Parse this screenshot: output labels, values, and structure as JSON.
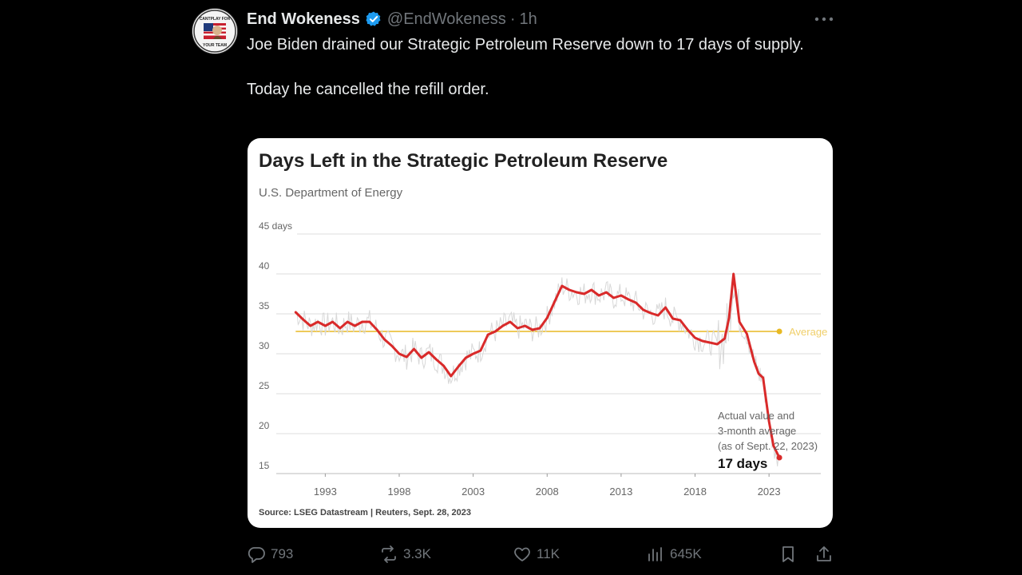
{
  "tweet": {
    "display_name": "End Wokeness",
    "handle": "@EndWokeness",
    "separator": "·",
    "time": "1h",
    "line1": "Joe Biden drained our Strategic Petroleum Reserve down to 17 days of supply.",
    "line2": "Today he cancelled the refill order.",
    "avatar_label_top": "CANTPLAY FOR",
    "avatar_label_bottom": "YOUR TEAM"
  },
  "actions": {
    "replies": "793",
    "reposts": "3.3K",
    "likes": "11K",
    "views": "645K"
  },
  "colors": {
    "accent_blue": "#1d9bf0",
    "line_red": "#d92a2a",
    "average_gold": "#e8b923",
    "muted": "#71767b"
  },
  "icons": [
    "verified-badge-icon",
    "more-icon",
    "reply-icon",
    "repost-icon",
    "like-icon",
    "views-icon",
    "bookmark-icon",
    "share-icon"
  ],
  "chart_data": {
    "type": "line",
    "title": "Days Left in the Strategic Petroleum Reserve",
    "subtitle": "U.S. Department of Energy",
    "source": "Source: LSEG Datastream | Reuters, Sept. 28, 2023",
    "ylim": [
      15,
      45
    ],
    "xlim": [
      1988.5,
      2026.5
    ],
    "y_ticks": [
      {
        "value": 45,
        "label": "45 days"
      },
      {
        "value": 40,
        "label": "40"
      },
      {
        "value": 35,
        "label": "35"
      },
      {
        "value": 30,
        "label": "30"
      },
      {
        "value": 25,
        "label": "25"
      },
      {
        "value": 20,
        "label": "20"
      },
      {
        "value": 15,
        "label": "15"
      }
    ],
    "x_ticks": [
      {
        "value": 1993,
        "label": "1993"
      },
      {
        "value": 1998,
        "label": "1998"
      },
      {
        "value": 2003,
        "label": "2003"
      },
      {
        "value": 2008,
        "label": "2008"
      },
      {
        "value": 2013,
        "label": "2013"
      },
      {
        "value": 2018,
        "label": "2018"
      },
      {
        "value": 2023,
        "label": "2023"
      }
    ],
    "grid": true,
    "average": {
      "value": 32.8,
      "label": "Average",
      "x_start": 1991,
      "x_end": 2023.7
    },
    "annotation": {
      "lines": [
        "Actual value and",
        "3-month average",
        "(as of Sept. 22, 2023)"
      ],
      "value_label": "17 days"
    },
    "series": [
      {
        "role": "3-month average",
        "x": [
          1991,
          1991.5,
          1992,
          1992.5,
          1993,
          1993.5,
          1994,
          1994.5,
          1995,
          1995.5,
          1996,
          1996.5,
          1997,
          1997.5,
          1998,
          1998.5,
          1999,
          1999.5,
          2000,
          2000.5,
          2001,
          2001.5,
          2002,
          2002.5,
          2003,
          2003.5,
          2004,
          2004.5,
          2005,
          2005.5,
          2006,
          2006.5,
          2007,
          2007.5,
          2008,
          2008.5,
          2009,
          2009.5,
          2010,
          2010.5,
          2011,
          2011.5,
          2012,
          2012.5,
          2013,
          2013.5,
          2014,
          2014.5,
          2015,
          2015.5,
          2016,
          2016.5,
          2017,
          2017.5,
          2018,
          2018.5,
          2019,
          2019.5,
          2020,
          2020.3,
          2020.6,
          2021,
          2021.5,
          2022,
          2022.3,
          2022.6,
          2023,
          2023.3,
          2023.7
        ],
        "y": [
          35.2,
          34.3,
          33.5,
          34,
          33.5,
          34,
          33.2,
          34,
          33.5,
          34,
          34,
          33,
          31.8,
          31,
          30,
          29.6,
          30.6,
          29.5,
          30.2,
          29.3,
          28.5,
          27.2,
          28.4,
          29.5,
          30,
          30.4,
          32.4,
          32.8,
          33.5,
          34,
          33.2,
          33.5,
          33,
          33.2,
          34.5,
          36.5,
          38.5,
          38,
          37.7,
          37.5,
          38,
          37.3,
          37.7,
          37,
          37.3,
          36.8,
          36.4,
          35.5,
          35.1,
          34.8,
          35.8,
          34.4,
          34.2,
          33,
          32,
          31.6,
          31.4,
          31.2,
          31.9,
          34.5,
          40,
          34,
          32.5,
          29,
          27.5,
          27,
          21.5,
          18.5,
          17
        ]
      }
    ]
  }
}
